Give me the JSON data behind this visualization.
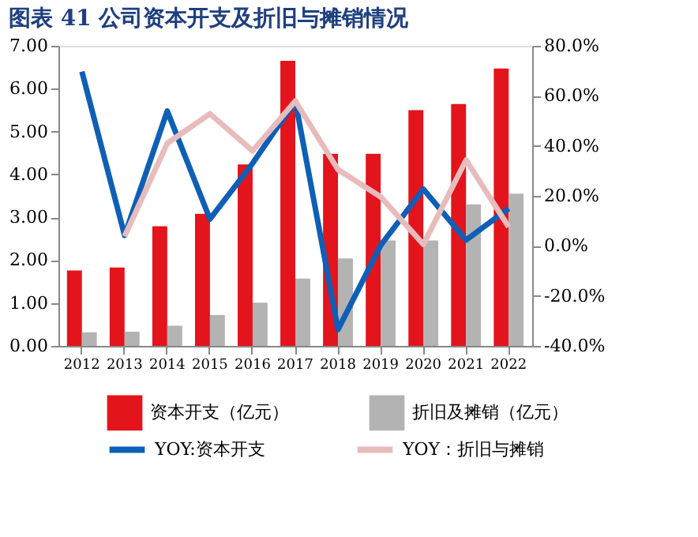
{
  "chart_data": {
    "type": "bar",
    "title": "图表 41 公司资本开支及折旧与摊销情况",
    "categories": [
      "2012",
      "2013",
      "2014",
      "2015",
      "2016",
      "2017",
      "2018",
      "2019",
      "2020",
      "2021",
      "2022"
    ],
    "series": [
      {
        "name": "资本开支（亿元）",
        "color": "#e3141c",
        "values": [
          1.76,
          1.83,
          2.79,
          3.08,
          4.23,
          6.65,
          4.48,
          4.48,
          5.5,
          5.64,
          6.47
        ]
      },
      {
        "name": "折旧及摊销（亿元）",
        "color": "#b3b3b3",
        "values": [
          0.32,
          0.33,
          0.47,
          0.72,
          1.01,
          1.57,
          2.04,
          2.46,
          2.46,
          3.3,
          3.55
        ]
      },
      {
        "name": "YOY:资本开支",
        "type": "line",
        "axis": "y2",
        "color": "#0e5fb5",
        "values": [
          69.7,
          4.2,
          53.9,
          10.7,
          33,
          57.9,
          -33.5,
          0.2,
          22.7,
          2.3,
          15
        ]
      },
      {
        "name": "YOY：折旧与摊销",
        "type": "line",
        "axis": "y2",
        "color": "#e8bcbc",
        "values": [
          null,
          3.8,
          41,
          52.8,
          38,
          57.9,
          30.5,
          19.6,
          0.6,
          34.3,
          7.6
        ]
      }
    ],
    "ylim": [
      0,
      7
    ],
    "yticks": [
      {
        "value": 0,
        "label": "0.00"
      },
      {
        "value": 1,
        "label": "1.00"
      },
      {
        "value": 2,
        "label": "2.00"
      },
      {
        "value": 3,
        "label": "3.00"
      },
      {
        "value": 4,
        "label": "4.00"
      },
      {
        "value": 5,
        "label": "5.00"
      },
      {
        "value": 6,
        "label": "6.00"
      },
      {
        "value": 7,
        "label": "7.00"
      }
    ],
    "y2lim": [
      -40,
      80
    ],
    "y2ticks": [
      {
        "value": -40,
        "label": "-40.0%"
      },
      {
        "value": -20,
        "label": "-20.0%"
      },
      {
        "value": 0,
        "label": "0.0%"
      },
      {
        "value": 20,
        "label": "20.0%"
      },
      {
        "value": 40,
        "label": "40.0%"
      },
      {
        "value": 60,
        "label": "60.0%"
      },
      {
        "value": 80,
        "label": "80.0%"
      }
    ],
    "grid": false,
    "legend": "bottom"
  }
}
